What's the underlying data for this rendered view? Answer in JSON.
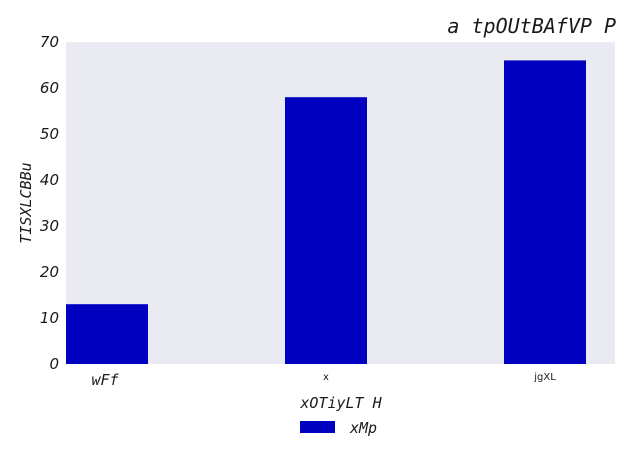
{
  "chart_data": {
    "type": "bar",
    "title": "a tpOUtBAfVP P",
    "xlabel": "xOTiyLT  H",
    "ylabel": "TISXLCBBu",
    "categories": [
      "wFf",
      "x",
      "jgXL"
    ],
    "series": [
      {
        "name": "xMp",
        "values": [
          13,
          58,
          66
        ],
        "color": "#0000c0"
      }
    ],
    "ylim": [
      0,
      70
    ],
    "yticks": [
      0,
      10,
      20,
      30,
      40,
      50,
      60,
      70
    ],
    "grid": false,
    "plot_background": "#eaeaf2",
    "legend_position": "bottom-center"
  }
}
